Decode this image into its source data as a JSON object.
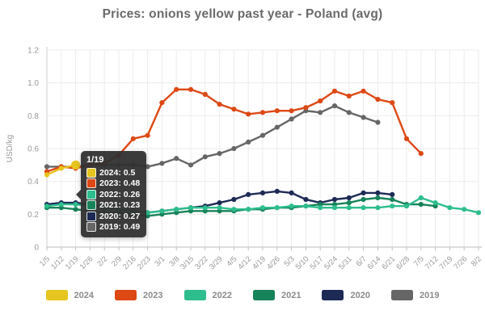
{
  "title": "Prices: onions yellow past year - Poland (avg)",
  "tooltip": {
    "title": "1/19",
    "rows": [
      {
        "year": "2024",
        "value": "0.5"
      },
      {
        "year": "2023",
        "value": "0.48"
      },
      {
        "year": "2022",
        "value": "0.26"
      },
      {
        "year": "2021",
        "value": "0.23"
      },
      {
        "year": "2020",
        "value": "0.27"
      },
      {
        "year": "2019",
        "value": "0.49"
      }
    ]
  },
  "chart_data": {
    "type": "line",
    "title": "Prices: onions yellow past year - Poland (avg)",
    "xlabel": "",
    "ylabel": "USD/kg",
    "ylim": [
      0,
      1.2
    ],
    "yticks": [
      "0",
      "0.2",
      "0.4",
      "0.6",
      "0.8",
      "1.0",
      "1.2"
    ],
    "grid": true,
    "legend_position": "bottom",
    "categories": [
      "1/5",
      "1/12",
      "1/19",
      "1/26",
      "2/2",
      "2/9",
      "2/16",
      "2/23",
      "3/1",
      "3/8",
      "3/15",
      "3/22",
      "3/29",
      "4/5",
      "4/12",
      "4/19",
      "4/26",
      "5/3",
      "5/10",
      "5/17",
      "5/24",
      "5/31",
      "6/7",
      "6/14",
      "6/21",
      "6/28",
      "7/5",
      "7/12",
      "7/19",
      "7/26",
      "8/2"
    ],
    "series": [
      {
        "name": "2024",
        "color": "#e6c51e",
        "values": [
          0.44,
          0.48,
          0.5
        ]
      },
      {
        "name": "2023",
        "color": "#dd4814",
        "values": [
          0.46,
          0.49,
          0.48,
          0.5,
          0.51,
          0.56,
          0.66,
          0.68,
          0.88,
          0.96,
          0.96,
          0.93,
          0.87,
          0.84,
          0.81,
          0.82,
          0.83,
          0.83,
          0.85,
          0.89,
          0.95,
          0.92,
          0.95,
          0.9,
          0.88,
          0.66,
          0.57
        ]
      },
      {
        "name": "2022",
        "color": "#2ebd8d",
        "values": [
          0.25,
          0.26,
          0.26,
          0.25,
          0.24,
          0.23,
          0.22,
          0.21,
          0.22,
          0.23,
          0.24,
          0.24,
          0.24,
          0.23,
          0.23,
          0.24,
          0.24,
          0.25,
          0.25,
          0.24,
          0.24,
          0.24,
          0.24,
          0.24,
          0.25,
          0.25,
          0.3,
          0.27,
          0.24,
          0.23,
          0.21
        ]
      },
      {
        "name": "2021",
        "color": "#17835a",
        "values": [
          0.24,
          0.24,
          0.23,
          0.22,
          0.21,
          0.21,
          0.2,
          0.19,
          0.2,
          0.21,
          0.22,
          0.22,
          0.22,
          0.22,
          0.23,
          0.23,
          0.24,
          0.24,
          0.25,
          0.26,
          0.26,
          0.27,
          0.29,
          0.3,
          0.29,
          0.26,
          0.26,
          0.25
        ]
      },
      {
        "name": "2020",
        "color": "#1d2a55",
        "values": [
          0.26,
          0.27,
          0.27,
          0.26,
          0.24,
          0.23,
          0.22,
          0.21,
          0.22,
          0.23,
          0.24,
          0.25,
          0.27,
          0.29,
          0.32,
          0.33,
          0.34,
          0.33,
          0.29,
          0.27,
          0.29,
          0.3,
          0.33,
          0.33,
          0.32
        ]
      },
      {
        "name": "2019",
        "color": "#666666",
        "values": [
          0.49,
          0.49,
          0.49,
          0.5,
          0.5,
          0.5,
          0.5,
          0.49,
          0.51,
          0.54,
          0.5,
          0.55,
          0.57,
          0.6,
          0.64,
          0.68,
          0.73,
          0.78,
          0.83,
          0.82,
          0.86,
          0.82,
          0.79,
          0.76
        ]
      }
    ],
    "highlight": {
      "series": "2024",
      "category": "1/19",
      "value": 0.5
    }
  }
}
